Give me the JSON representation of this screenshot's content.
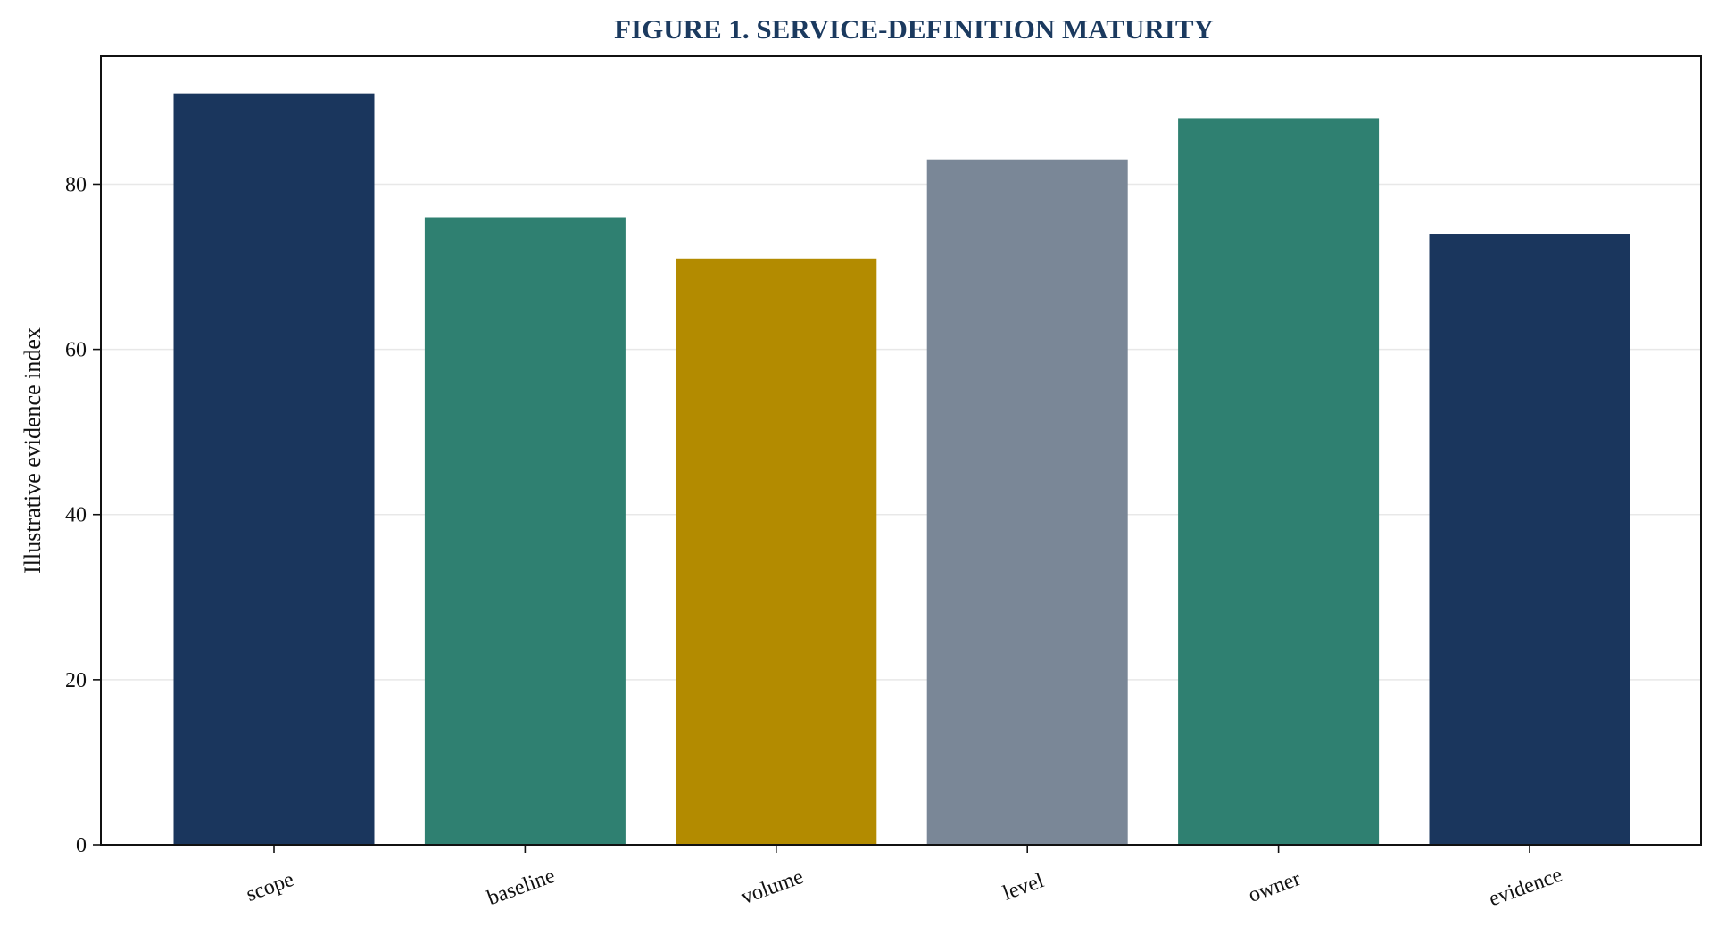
{
  "chart_data": {
    "type": "bar",
    "title": "FIGURE 1. SERVICE-DEFINITION MATURITY",
    "xlabel": "",
    "ylabel": "Illustrative evidence index",
    "categories": [
      "scope",
      "baseline",
      "volume",
      "level",
      "owner",
      "evidence"
    ],
    "values": [
      91,
      76,
      71,
      83,
      88,
      74
    ],
    "colors": [
      "#1a365d",
      "#2f8071",
      "#b38b00",
      "#7a8797",
      "#2f8071",
      "#1a365d"
    ],
    "ylim": [
      0,
      95.5
    ],
    "yticks": [
      0,
      20,
      40,
      60,
      80
    ],
    "ytick_labels": [
      "0",
      "20",
      "40",
      "60",
      "80"
    ],
    "grid": "horizontal",
    "legend": "none"
  }
}
